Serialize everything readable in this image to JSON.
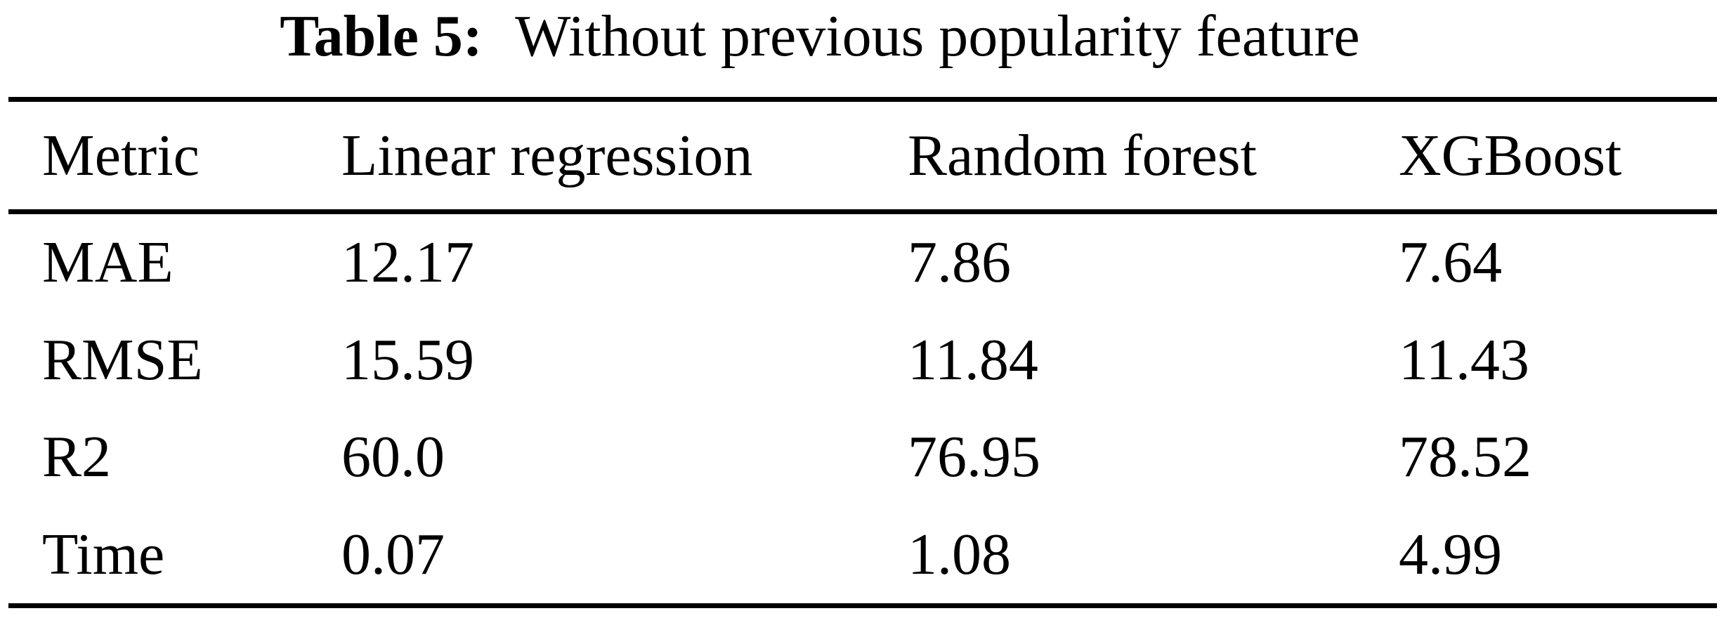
{
  "caption": {
    "label": "Table 5:",
    "text": "Without previous popularity feature"
  },
  "columns": [
    "Metric",
    "Linear regression",
    "Random forest",
    "XGBoost"
  ],
  "rows": [
    {
      "cells": [
        "MAE",
        "12.17",
        "7.86",
        "7.64"
      ]
    },
    {
      "cells": [
        "RMSE",
        "15.59",
        "11.84",
        "11.43"
      ]
    },
    {
      "cells": [
        "R2",
        "60.0",
        "76.95",
        "78.52"
      ]
    },
    {
      "cells": [
        "Time",
        "0.07",
        "1.08",
        "4.99"
      ]
    }
  ],
  "colors": {
    "background": "#ffffff",
    "text": "#000000",
    "rule": "#000000"
  }
}
